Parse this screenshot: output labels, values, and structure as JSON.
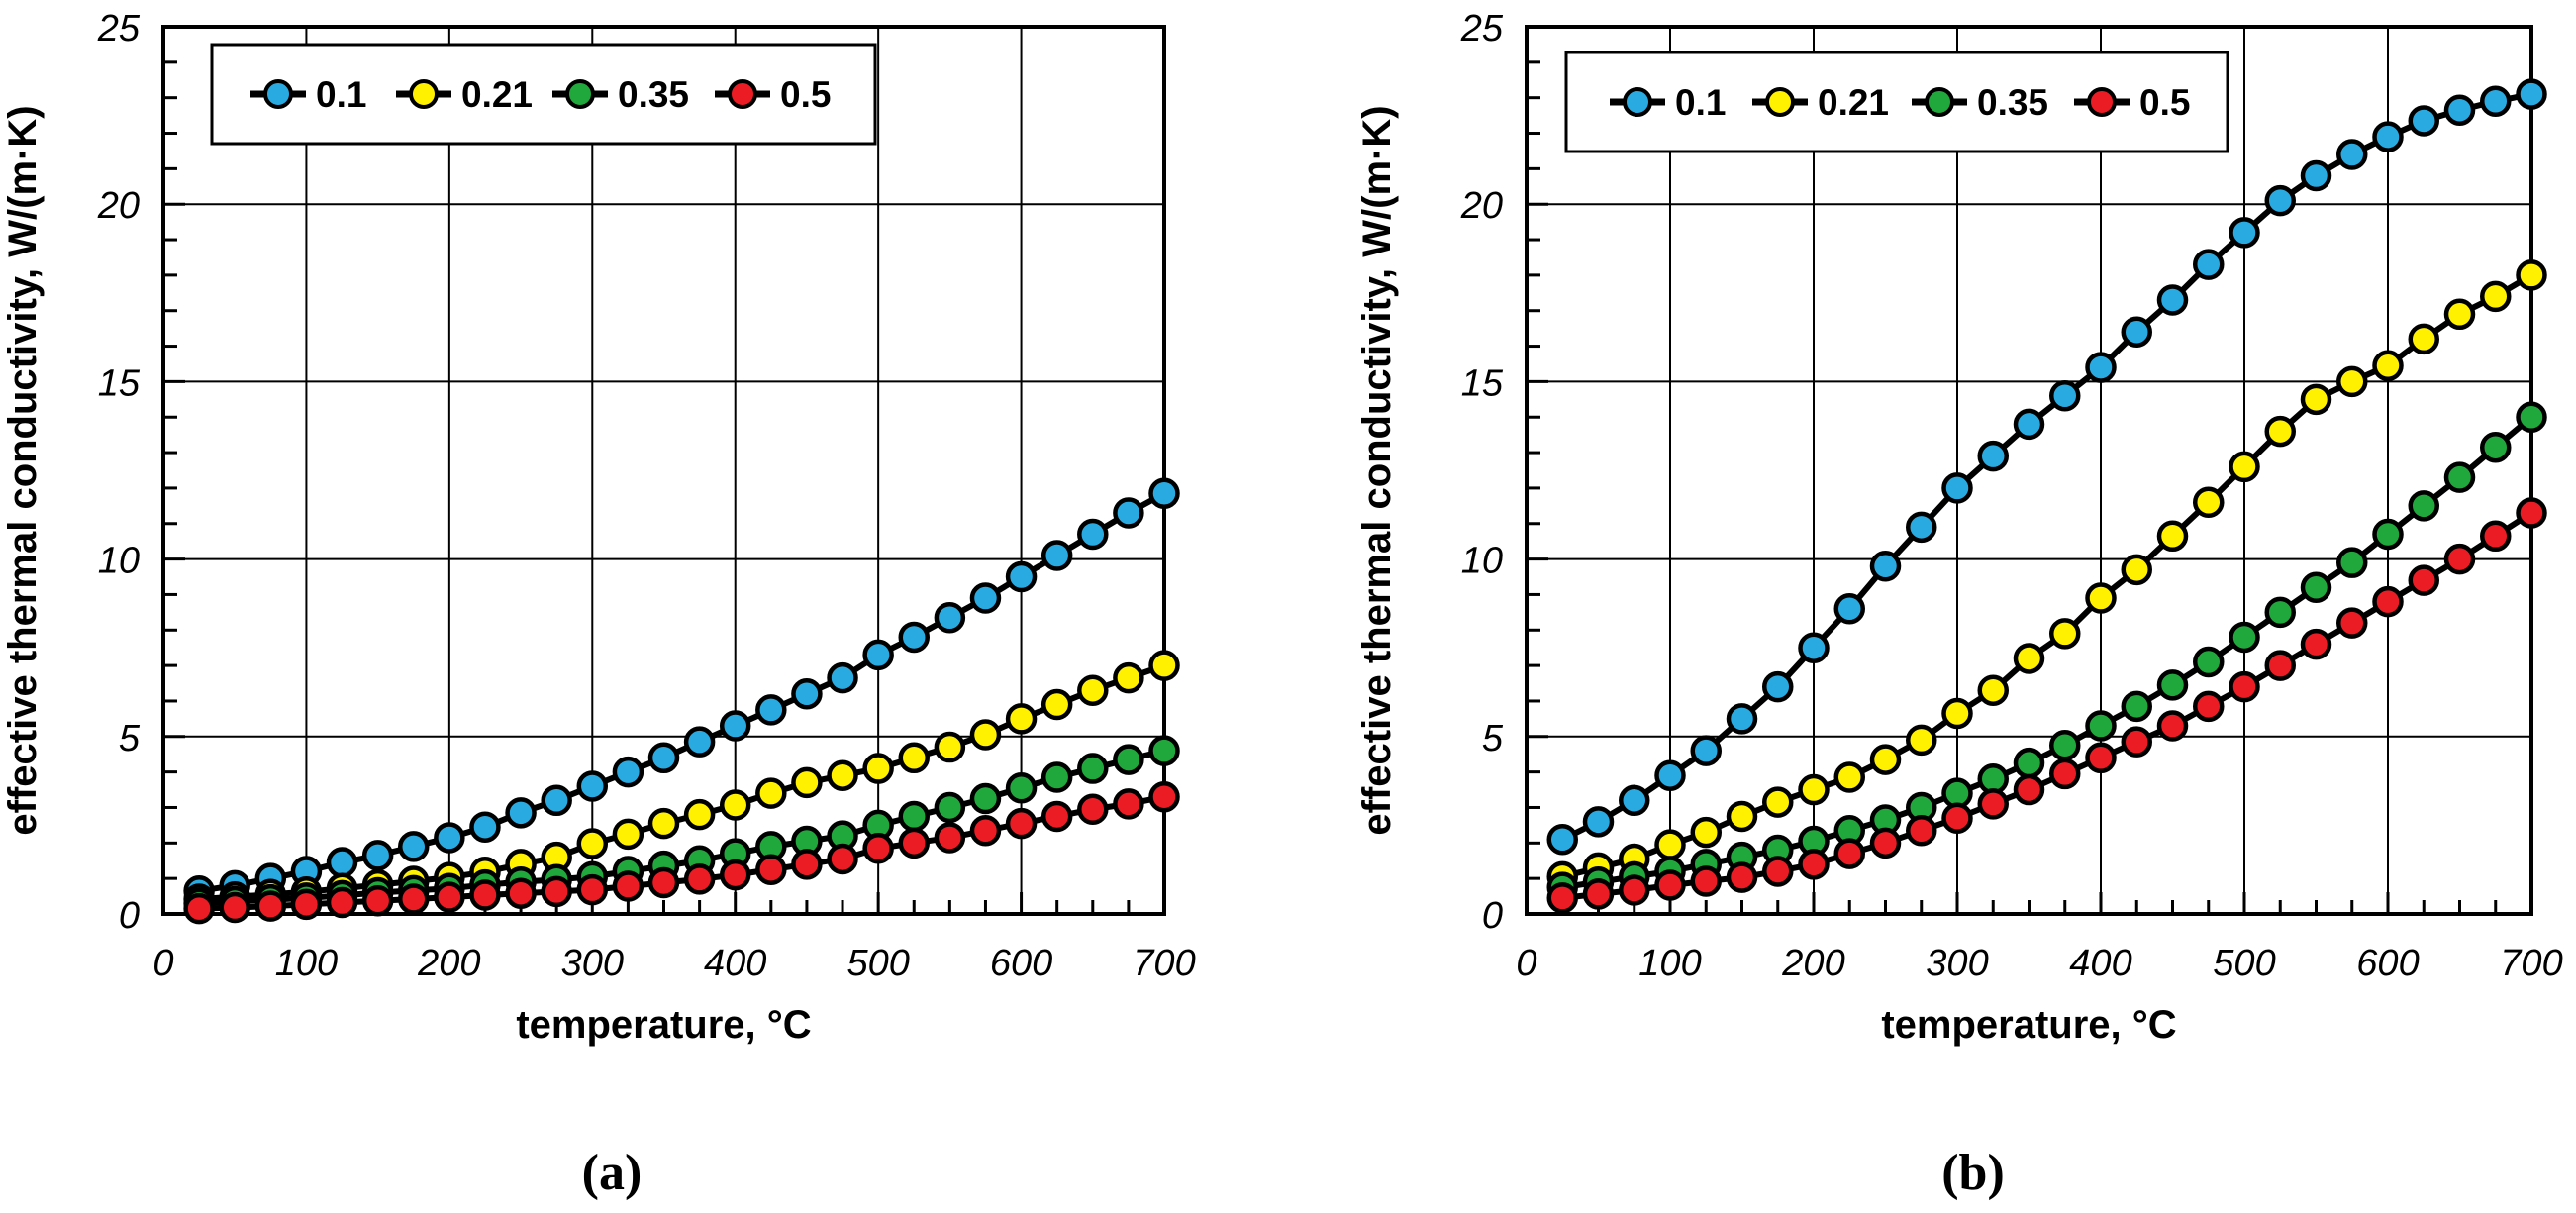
{
  "figure": {
    "background": "#ffffff",
    "grid_color": "#000000",
    "axis_color": "#000000"
  },
  "chart_data": [
    {
      "id": "a",
      "type": "line",
      "sublabel": "(a)",
      "xlabel": "temperature, °C",
      "ylabel": "effective thermal conductivity, W/(m·K)",
      "xlim": [
        0,
        700
      ],
      "ylim": [
        0,
        25
      ],
      "x_major_ticks": [
        0,
        100,
        200,
        300,
        400,
        500,
        600,
        700
      ],
      "y_major_ticks": [
        0,
        5,
        10,
        15,
        20,
        25
      ],
      "x_minor_step": 25,
      "y_minor_step": 1,
      "grid": true,
      "legend_position": "top-left-inside",
      "legend_labels": [
        "0.1",
        "0.21",
        "0.35",
        "0.5"
      ],
      "x": [
        25,
        50,
        75,
        100,
        125,
        150,
        175,
        200,
        225,
        250,
        275,
        300,
        325,
        350,
        375,
        400,
        425,
        450,
        475,
        500,
        525,
        550,
        575,
        600,
        625,
        650,
        675,
        700
      ],
      "series": [
        {
          "name": "0.1",
          "color": "#29ABE2",
          "values": [
            0.65,
            0.8,
            1.0,
            1.2,
            1.45,
            1.65,
            1.9,
            2.15,
            2.45,
            2.85,
            3.2,
            3.6,
            4.0,
            4.4,
            4.85,
            5.3,
            5.75,
            6.2,
            6.65,
            7.3,
            7.8,
            8.35,
            8.9,
            9.5,
            10.1,
            10.7,
            11.3,
            11.85
          ]
        },
        {
          "name": "0.21",
          "color": "#FFF100",
          "values": [
            0.42,
            0.48,
            0.55,
            0.62,
            0.72,
            0.82,
            0.92,
            1.03,
            1.18,
            1.4,
            1.6,
            1.98,
            2.25,
            2.55,
            2.8,
            3.07,
            3.4,
            3.7,
            3.9,
            4.1,
            4.4,
            4.7,
            5.05,
            5.5,
            5.9,
            6.3,
            6.65,
            7.0
          ]
        },
        {
          "name": "0.35",
          "color": "#21A83C",
          "values": [
            0.3,
            0.35,
            0.4,
            0.45,
            0.52,
            0.6,
            0.66,
            0.72,
            0.82,
            0.9,
            0.97,
            1.05,
            1.2,
            1.35,
            1.5,
            1.7,
            1.9,
            2.05,
            2.2,
            2.5,
            2.75,
            3.0,
            3.25,
            3.55,
            3.85,
            4.1,
            4.35,
            4.6
          ]
        },
        {
          "name": "0.5",
          "color": "#EB1C24",
          "values": [
            0.15,
            0.18,
            0.22,
            0.27,
            0.32,
            0.37,
            0.42,
            0.47,
            0.53,
            0.58,
            0.63,
            0.68,
            0.78,
            0.88,
            0.98,
            1.1,
            1.25,
            1.4,
            1.55,
            1.85,
            2.0,
            2.15,
            2.35,
            2.55,
            2.75,
            2.95,
            3.1,
            3.3
          ]
        }
      ]
    },
    {
      "id": "b",
      "type": "line",
      "sublabel": "(b)",
      "xlabel": "temperature, °C",
      "ylabel": "effective thermal conductivity, W/(m·K)",
      "xlim": [
        0,
        700
      ],
      "ylim": [
        0,
        25
      ],
      "x_major_ticks": [
        0,
        100,
        200,
        300,
        400,
        500,
        600,
        700
      ],
      "y_major_ticks": [
        0,
        5,
        10,
        15,
        20,
        25
      ],
      "x_minor_step": 25,
      "y_minor_step": 1,
      "grid": true,
      "legend_position": "top-left-inside",
      "legend_labels": [
        "0.1",
        "0.21",
        "0.35",
        "0.5"
      ],
      "x": [
        25,
        50,
        75,
        100,
        125,
        150,
        175,
        200,
        225,
        250,
        275,
        300,
        325,
        350,
        375,
        400,
        425,
        450,
        475,
        500,
        525,
        550,
        575,
        600,
        625,
        650,
        675,
        700
      ],
      "series": [
        {
          "name": "0.1",
          "color": "#29ABE2",
          "values": [
            2.1,
            2.6,
            3.2,
            3.9,
            4.6,
            5.5,
            6.4,
            7.5,
            8.6,
            9.8,
            10.9,
            12.0,
            12.9,
            13.8,
            14.6,
            15.4,
            16.4,
            17.3,
            18.3,
            19.2,
            20.1,
            20.8,
            21.4,
            21.9,
            22.35,
            22.65,
            22.9,
            23.1
          ]
        },
        {
          "name": "0.21",
          "color": "#FFF100",
          "values": [
            1.05,
            1.3,
            1.55,
            1.95,
            2.3,
            2.75,
            3.15,
            3.5,
            3.85,
            4.35,
            4.9,
            5.65,
            6.3,
            7.2,
            7.9,
            8.9,
            9.7,
            10.65,
            11.6,
            12.6,
            13.6,
            14.5,
            15.0,
            15.45,
            16.2,
            16.9,
            17.4,
            18.0
          ]
        },
        {
          "name": "0.35",
          "color": "#21A83C",
          "values": [
            0.75,
            0.9,
            1.05,
            1.2,
            1.4,
            1.6,
            1.8,
            2.05,
            2.35,
            2.65,
            3.0,
            3.4,
            3.8,
            4.25,
            4.75,
            5.3,
            5.85,
            6.45,
            7.1,
            7.8,
            8.5,
            9.2,
            9.9,
            10.7,
            11.5,
            12.3,
            13.15,
            14.0
          ]
        },
        {
          "name": "0.5",
          "color": "#EB1C24",
          "values": [
            0.45,
            0.56,
            0.67,
            0.81,
            0.92,
            1.03,
            1.2,
            1.4,
            1.7,
            2.0,
            2.35,
            2.7,
            3.1,
            3.5,
            3.95,
            4.4,
            4.85,
            5.3,
            5.85,
            6.4,
            7.0,
            7.6,
            8.2,
            8.8,
            9.4,
            10.0,
            10.65,
            11.3
          ]
        }
      ]
    }
  ]
}
